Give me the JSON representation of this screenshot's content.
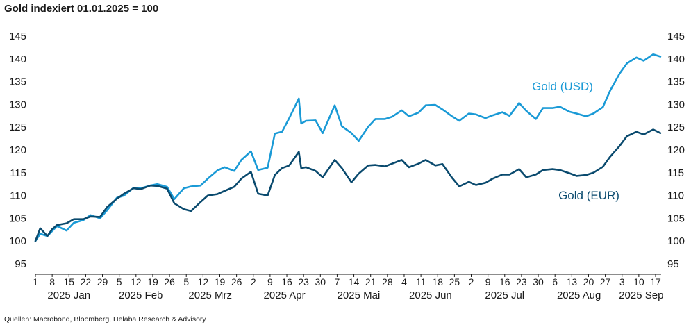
{
  "title": "Gold indexiert 01.01.2025 = 100",
  "source": "Quellen: Macrobond, Bloomberg, Helaba Research & Advisory",
  "chart_data": {
    "type": "line",
    "title": "Gold indexiert 01.01.2025 = 100",
    "ylim": [
      95,
      145
    ],
    "yticks": [
      95,
      100,
      105,
      110,
      115,
      120,
      125,
      130,
      135,
      140,
      145
    ],
    "ytick_labels": [
      "95",
      "100",
      "105",
      "110",
      "115",
      "120",
      "125",
      "130",
      "135",
      "140",
      "145"
    ],
    "y_axis_sides": "left-and-right",
    "grid": false,
    "legend": "inline-labels",
    "x_day_labels": [
      {
        "text": "1",
        "date": "2025-01-01"
      },
      {
        "text": "8",
        "date": "2025-01-08"
      },
      {
        "text": "15",
        "date": "2025-01-15"
      },
      {
        "text": "22",
        "date": "2025-01-22"
      },
      {
        "text": "29",
        "date": "2025-01-29"
      },
      {
        "text": "5",
        "date": "2025-02-05"
      },
      {
        "text": "12",
        "date": "2025-02-12"
      },
      {
        "text": "19",
        "date": "2025-02-19"
      },
      {
        "text": "26",
        "date": "2025-02-26"
      },
      {
        "text": "5",
        "date": "2025-03-05"
      },
      {
        "text": "12",
        "date": "2025-03-12"
      },
      {
        "text": "19",
        "date": "2025-03-19"
      },
      {
        "text": "26",
        "date": "2025-03-26"
      },
      {
        "text": "2",
        "date": "2025-04-02"
      },
      {
        "text": "9",
        "date": "2025-04-09"
      },
      {
        "text": "16",
        "date": "2025-04-16"
      },
      {
        "text": "23",
        "date": "2025-04-23"
      },
      {
        "text": "30",
        "date": "2025-04-30"
      },
      {
        "text": "7",
        "date": "2025-05-07"
      },
      {
        "text": "14",
        "date": "2025-05-14"
      },
      {
        "text": "21",
        "date": "2025-05-21"
      },
      {
        "text": "28",
        "date": "2025-05-28"
      },
      {
        "text": "4",
        "date": "2025-06-04"
      },
      {
        "text": "11",
        "date": "2025-06-11"
      },
      {
        "text": "18",
        "date": "2025-06-18"
      },
      {
        "text": "25",
        "date": "2025-06-25"
      },
      {
        "text": "2",
        "date": "2025-07-02"
      },
      {
        "text": "9",
        "date": "2025-07-09"
      },
      {
        "text": "16",
        "date": "2025-07-16"
      },
      {
        "text": "23",
        "date": "2025-07-23"
      },
      {
        "text": "30",
        "date": "2025-07-30"
      },
      {
        "text": "6",
        "date": "2025-08-06"
      },
      {
        "text": "13",
        "date": "2025-08-13"
      },
      {
        "text": "20",
        "date": "2025-08-20"
      },
      {
        "text": "27",
        "date": "2025-08-27"
      },
      {
        "text": "3",
        "date": "2025-09-03"
      },
      {
        "text": "10",
        "date": "2025-09-10"
      },
      {
        "text": "17",
        "date": "2025-09-17"
      }
    ],
    "x_month_labels": [
      {
        "text": "2025 Jan",
        "date": "2025-01-15"
      },
      {
        "text": "2025 Feb",
        "date": "2025-02-14"
      },
      {
        "text": "2025 Mrz",
        "date": "2025-03-15"
      },
      {
        "text": "2025 Apr",
        "date": "2025-04-15"
      },
      {
        "text": "2025 Mai",
        "date": "2025-05-16"
      },
      {
        "text": "2025 Jun",
        "date": "2025-06-15"
      },
      {
        "text": "2025 Jul",
        "date": "2025-07-16"
      },
      {
        "text": "2025 Aug",
        "date": "2025-08-16"
      },
      {
        "text": "2025 Sep",
        "date": "2025-09-11"
      }
    ],
    "series": [
      {
        "name": "Gold (USD)",
        "color": "#1a9ad6",
        "dates": [
          "2025-01-01",
          "2025-01-03",
          "2025-01-06",
          "2025-01-08",
          "2025-01-10",
          "2025-01-14",
          "2025-01-17",
          "2025-01-21",
          "2025-01-24",
          "2025-01-28",
          "2025-01-31",
          "2025-02-04",
          "2025-02-07",
          "2025-02-11",
          "2025-02-14",
          "2025-02-18",
          "2025-02-21",
          "2025-02-25",
          "2025-02-28",
          "2025-03-04",
          "2025-03-07",
          "2025-03-11",
          "2025-03-14",
          "2025-03-18",
          "2025-03-21",
          "2025-03-25",
          "2025-03-28",
          "2025-04-01",
          "2025-04-04",
          "2025-04-08",
          "2025-04-11",
          "2025-04-14",
          "2025-04-17",
          "2025-04-21",
          "2025-04-22",
          "2025-04-24",
          "2025-04-28",
          "2025-05-01",
          "2025-05-06",
          "2025-05-09",
          "2025-05-13",
          "2025-05-16",
          "2025-05-20",
          "2025-05-23",
          "2025-05-27",
          "2025-05-30",
          "2025-06-03",
          "2025-06-06",
          "2025-06-10",
          "2025-06-13",
          "2025-06-17",
          "2025-06-20",
          "2025-06-24",
          "2025-06-27",
          "2025-07-01",
          "2025-07-04",
          "2025-07-08",
          "2025-07-11",
          "2025-07-15",
          "2025-07-18",
          "2025-07-22",
          "2025-07-25",
          "2025-07-29",
          "2025-08-01",
          "2025-08-05",
          "2025-08-08",
          "2025-08-12",
          "2025-08-15",
          "2025-08-19",
          "2025-08-22",
          "2025-08-26",
          "2025-08-29",
          "2025-09-02",
          "2025-09-05",
          "2025-09-09",
          "2025-09-12",
          "2025-09-16",
          "2025-09-19"
        ],
        "values": [
          100.0,
          101.6,
          101.1,
          102.2,
          103.3,
          102.3,
          104.0,
          104.6,
          105.7,
          105.0,
          106.8,
          109.5,
          110.0,
          111.7,
          111.6,
          112.2,
          112.5,
          111.9,
          109.2,
          111.6,
          112.0,
          112.2,
          113.7,
          115.5,
          116.2,
          115.4,
          117.8,
          119.7,
          115.6,
          116.1,
          123.6,
          124.0,
          127.0,
          131.3,
          125.8,
          126.4,
          126.5,
          123.7,
          129.8,
          125.2,
          123.7,
          122.0,
          125.1,
          126.8,
          126.8,
          127.3,
          128.7,
          127.4,
          128.2,
          129.8,
          129.9,
          128.9,
          127.4,
          126.4,
          128.0,
          127.8,
          127.0,
          127.6,
          128.3,
          127.5,
          130.3,
          128.6,
          126.8,
          129.2,
          129.2,
          129.5,
          128.4,
          128.0,
          127.4,
          128.0,
          129.4,
          133.0,
          136.8,
          139.0,
          140.3,
          139.6,
          141.0,
          140.5
        ]
      },
      {
        "name": "Gold (EUR)",
        "color": "#0a4a6e",
        "dates": [
          "2025-01-01",
          "2025-01-03",
          "2025-01-06",
          "2025-01-08",
          "2025-01-10",
          "2025-01-14",
          "2025-01-17",
          "2025-01-21",
          "2025-01-24",
          "2025-01-28",
          "2025-01-31",
          "2025-02-04",
          "2025-02-07",
          "2025-02-11",
          "2025-02-14",
          "2025-02-18",
          "2025-02-21",
          "2025-02-25",
          "2025-02-28",
          "2025-03-04",
          "2025-03-07",
          "2025-03-11",
          "2025-03-14",
          "2025-03-18",
          "2025-03-21",
          "2025-03-25",
          "2025-03-28",
          "2025-04-01",
          "2025-04-04",
          "2025-04-08",
          "2025-04-11",
          "2025-04-14",
          "2025-04-17",
          "2025-04-21",
          "2025-04-22",
          "2025-04-24",
          "2025-04-28",
          "2025-05-01",
          "2025-05-06",
          "2025-05-09",
          "2025-05-13",
          "2025-05-16",
          "2025-05-20",
          "2025-05-23",
          "2025-05-27",
          "2025-05-30",
          "2025-06-03",
          "2025-06-06",
          "2025-06-10",
          "2025-06-13",
          "2025-06-17",
          "2025-06-20",
          "2025-06-24",
          "2025-06-27",
          "2025-07-01",
          "2025-07-04",
          "2025-07-08",
          "2025-07-11",
          "2025-07-15",
          "2025-07-18",
          "2025-07-22",
          "2025-07-25",
          "2025-07-29",
          "2025-08-01",
          "2025-08-05",
          "2025-08-08",
          "2025-08-12",
          "2025-08-15",
          "2025-08-19",
          "2025-08-22",
          "2025-08-26",
          "2025-08-29",
          "2025-09-02",
          "2025-09-05",
          "2025-09-09",
          "2025-09-12",
          "2025-09-16",
          "2025-09-19"
        ],
        "values": [
          100.0,
          102.8,
          101.1,
          102.6,
          103.5,
          103.9,
          104.8,
          104.8,
          105.4,
          105.3,
          107.5,
          109.3,
          110.4,
          111.6,
          111.4,
          112.2,
          112.1,
          111.5,
          108.3,
          107.0,
          106.6,
          108.6,
          110.0,
          110.3,
          111.0,
          111.9,
          113.7,
          115.2,
          110.4,
          110.0,
          114.5,
          116.0,
          116.6,
          119.6,
          116.0,
          116.2,
          115.4,
          114.0,
          117.8,
          116.0,
          112.9,
          114.8,
          116.6,
          116.7,
          116.4,
          117.0,
          117.8,
          116.2,
          117.0,
          117.8,
          116.6,
          116.9,
          113.9,
          112.0,
          113.0,
          112.3,
          112.8,
          113.7,
          114.6,
          114.6,
          115.8,
          114.0,
          114.6,
          115.6,
          115.8,
          115.6,
          114.9,
          114.3,
          114.5,
          115.0,
          116.3,
          118.5,
          120.9,
          123.0,
          124.0,
          123.4,
          124.5,
          123.7
        ]
      }
    ]
  }
}
